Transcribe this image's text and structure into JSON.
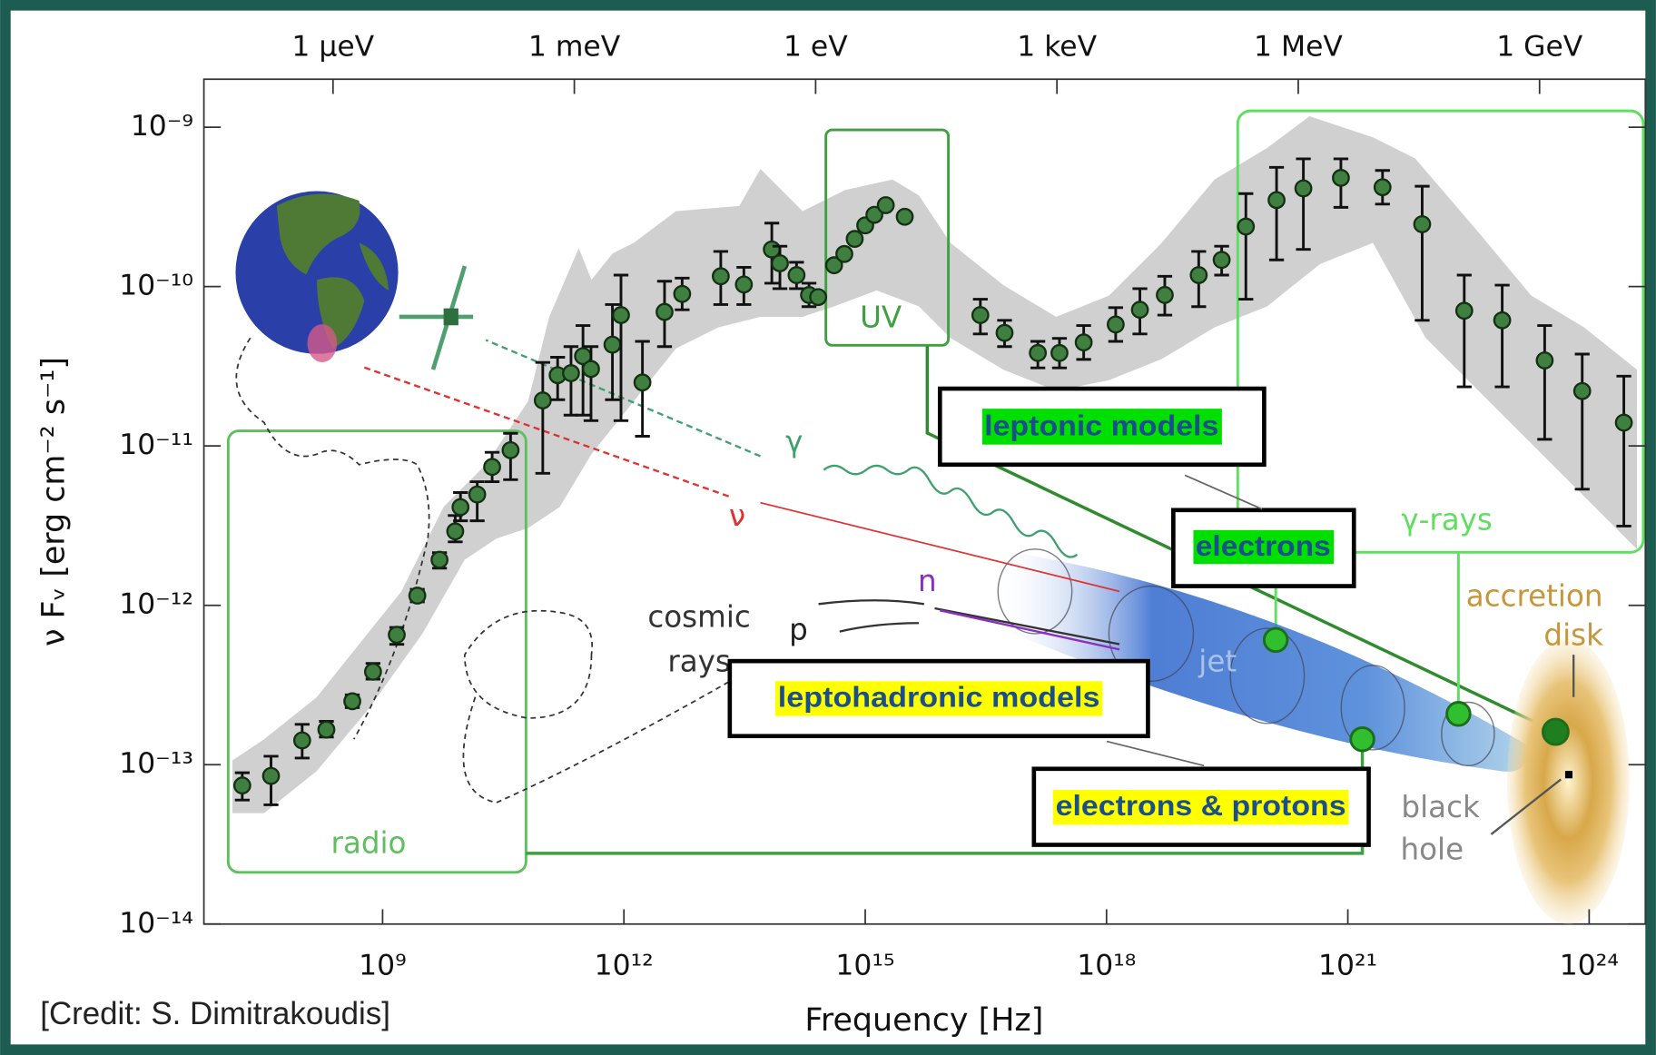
{
  "chart_data": {
    "type": "scatter",
    "xlabel": "Frequency [Hz]",
    "ylabel": "ν Fᵥ [erg cm⁻² s⁻¹]",
    "credit": "[Credit: S. Dimitrakoudis]",
    "xscale": "log",
    "yscale": "log",
    "xlim": [
      6000000.0,
      5e+24
    ],
    "ylim": [
      1e-14,
      2e-09
    ],
    "xticks": [
      {
        "value": 1000000000.0,
        "label": "10⁹"
      },
      {
        "value": 1000000000000.0,
        "label": "10¹²"
      },
      {
        "value": 1000000000000000.0,
        "label": "10¹⁵"
      },
      {
        "value": 1e+18,
        "label": "10¹⁸"
      },
      {
        "value": 1e+21,
        "label": "10²¹"
      },
      {
        "value": 1e+24,
        "label": "10²⁴"
      }
    ],
    "x2ticks": [
      {
        "value": 241800000.0,
        "label": "1 μeV"
      },
      {
        "value": 241800000000.0,
        "label": "1 meV"
      },
      {
        "value": 241800000000000.0,
        "label": "1 eV"
      },
      {
        "value": 2.418e+17,
        "label": "1 keV"
      },
      {
        "value": 2.418e+20,
        "label": "1 MeV"
      },
      {
        "value": 2.418e+23,
        "label": "1 GeV"
      }
    ],
    "yticks": [
      {
        "value": 1e-14,
        "label": "10⁻¹⁴"
      },
      {
        "value": 1e-13,
        "label": "10⁻¹³"
      },
      {
        "value": 1e-12,
        "label": "10⁻¹²"
      },
      {
        "value": 1e-11,
        "label": "10⁻¹¹"
      },
      {
        "value": 1e-10,
        "label": "10⁻¹⁰"
      },
      {
        "value": 1e-09,
        "label": "10⁻⁹"
      }
    ],
    "color": "#3f7f3f",
    "x": [
      18000000.0,
      41000000.0,
      100000000.0,
      200000000.0,
      420000000.0,
      760000000.0,
      1500000000.0,
      2700000000.0,
      5100000000.0,
      8000000000.0,
      9300000000.0,
      15000000000.0,
      23000000000.0,
      39000000000.0,
      98000000000.0,
      150000000000.0,
      220000000000.0,
      310000000000.0,
      390000000000.0,
      720000000000.0,
      920000000000.0,
      1700000000000.0,
      3200000000000.0,
      5300000000000.0,
      16000000000000.0,
      31000000000000.0,
      69000000000000.0,
      87000000000000.0,
      140000000000000.0,
      200000000000000.0,
      260000000000000.0,
      410000000000000.0,
      550000000000000.0,
      740000000000000.0,
      1000000000000000.0,
      1300000000000000.0,
      1800000000000000.0,
      3100000000000000.0,
      2.7e+16,
      5.4e+16,
      1.4e+17,
      2.6e+17,
      5.2e+17,
      1.3e+18,
      2.6e+18,
      5.3e+18,
      1.4e+19,
      2.7e+19,
      5.4e+19,
      1.3e+20,
      2.8e+20,
      8.2e+20,
      2.7e+21,
      8.4e+21,
      2.8e+22,
      8.3e+22,
      2.8e+23,
      8.2e+23,
      2.7e+24
    ],
    "values": [
      7.4e-14,
      8.5e-14,
      1.42e-13,
      1.66e-13,
      2.5e-13,
      3.83e-13,
      6.53e-13,
      1.15e-12,
      1.93e-12,
      2.91e-12,
      4.13e-12,
      4.96e-12,
      7.38e-12,
      9.4e-12,
      1.93e-11,
      2.78e-11,
      2.86e-11,
      3.66e-11,
      3.04e-11,
      4.32e-11,
      6.62e-11,
      2.5e-11,
      6.93e-11,
      8.99e-11,
      1.16e-10,
      1.03e-10,
      1.71e-10,
      1.4e-10,
      1.18e-10,
      8.85e-11,
      8.59e-11,
      1.36e-10,
      1.6e-10,
      1.99e-10,
      2.42e-10,
      2.82e-10,
      3.24e-10,
      2.74e-10,
      6.62e-11,
      5.12e-11,
      3.83e-11,
      3.83e-11,
      4.46e-11,
      5.78e-11,
      7.15e-11,
      8.85e-11,
      1.18e-10,
      1.47e-10,
      2.38e-10,
      3.49e-10,
      4.13e-10,
      4.81e-10,
      4.2e-10,
      2.46e-10,
      7.05e-11,
      6.14e-11,
      3.44e-11,
      2.21e-11,
      1.4e-11
    ],
    "y_low": [
      6e-14,
      5.6e-14,
      1.1e-13,
      1.49e-13,
      2.28e-13,
      3.44e-13,
      5.69e-13,
      1.05e-12,
      1.71e-12,
      2.5e-12,
      3.39e-12,
      3.39e-12,
      5.96e-12,
      6.14e-12,
      6.73e-12,
      1.95e-11,
      1.56e-11,
      1.56e-11,
      1.44e-11,
      1.95e-11,
      1.44e-11,
      1.15e-11,
      4.2e-11,
      7.15e-11,
      7.71e-11,
      7.71e-11,
      1.05e-10,
      9.7e-11,
      9.7e-11,
      7.48e-11,
      null,
      null,
      null,
      null,
      null,
      null,
      null,
      null,
      5.04e-11,
      4.2e-11,
      3.09e-11,
      3.09e-11,
      3.49e-11,
      4.53e-11,
      5.04e-11,
      6.62e-11,
      7.48e-11,
      1.18e-10,
      8.33e-11,
      1.47e-10,
      1.71e-10,
      3.14e-10,
      3.29e-10,
      6.14e-11,
      2.35e-11,
      2.35e-11,
      1.1e-11,
      5.35e-12,
      3.14e-12
    ],
    "y_high": [
      8.9e-14,
      1.13e-13,
      1.79e-13,
      1.87e-13,
      2.74e-13,
      4.32e-13,
      7.26e-13,
      1.26e-12,
      2.14e-12,
      3.66e-12,
      5.1e-12,
      5.96e-12,
      9.12e-12,
      1.2e-11,
      3.34e-11,
      3.6e-11,
      4.2e-11,
      5.69e-11,
      4.2e-11,
      7.71e-11,
      1.18e-10,
      4.53e-11,
      1.08e-10,
      1.13e-10,
      1.66e-10,
      1.32e-10,
      2.5e-10,
      1.79e-10,
      1.42e-10,
      1.05e-10,
      null,
      null,
      null,
      null,
      null,
      null,
      null,
      null,
      8.33e-11,
      6.14e-11,
      4.53e-11,
      4.73e-11,
      5.69e-11,
      7.38e-11,
      9.7e-11,
      1.16e-10,
      1.66e-10,
      1.79e-10,
      3.83e-10,
      5.6e-10,
      6.33e-10,
      6.33e-10,
      5.35e-10,
      4.26e-10,
      1.18e-10,
      1.02e-10,
      5.69e-11,
      3.77e-11,
      2.74e-11
    ],
    "annotations": [
      "radio",
      "UV",
      "γ-rays",
      "γ",
      "ν",
      "n",
      "p",
      "cosmic",
      "rays",
      "jet",
      "accretion",
      "disk",
      "black",
      "hole",
      "leptonic models",
      "electrons",
      "leptohadronic models",
      "electrons & protons"
    ]
  }
}
